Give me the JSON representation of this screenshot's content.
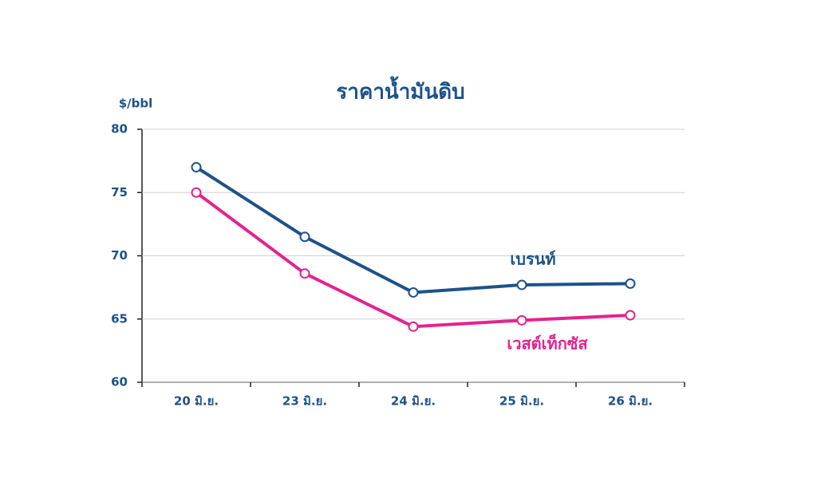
{
  "chart_data": {
    "type": "line",
    "title": "ราคาน้ำมันดิบ",
    "y_label": "$/bbl",
    "categories": [
      "20 มิ.ย.",
      "23 มิ.ย.",
      "24 มิ.ย.",
      "25 มิ.ย.",
      "26 มิ.ย."
    ],
    "series": [
      {
        "name": "เบรนท์",
        "color": "#1d5289",
        "values": [
          77,
          71.5,
          67.1,
          67.7,
          67.8
        ]
      },
      {
        "name": "เวสต์เท็กซัส",
        "color": "#e3238f",
        "values": [
          75,
          68.6,
          64.4,
          64.9,
          65.3
        ]
      }
    ],
    "ylim": [
      60,
      80
    ],
    "yticks": [
      60,
      65,
      70,
      75,
      80
    ],
    "grid": true
  }
}
